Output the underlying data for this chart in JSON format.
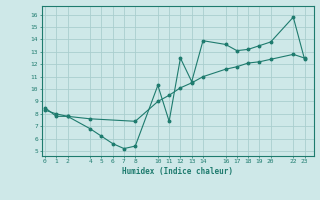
{
  "xlabel": "Humidex (Indice chaleur)",
  "line1_x": [
    0,
    1,
    2,
    4,
    5,
    6,
    7,
    8,
    10,
    11,
    12,
    13,
    14,
    16,
    17,
    18,
    19,
    20,
    22,
    23
  ],
  "line1_y": [
    8.5,
    7.8,
    7.8,
    6.8,
    6.2,
    5.6,
    5.2,
    5.4,
    10.3,
    7.4,
    12.5,
    10.6,
    13.9,
    13.6,
    13.1,
    13.2,
    13.5,
    13.8,
    15.8,
    12.4
  ],
  "line2_x": [
    0,
    1,
    2,
    4,
    8,
    10,
    11,
    12,
    13,
    14,
    16,
    17,
    18,
    19,
    20,
    22,
    23
  ],
  "line2_y": [
    8.3,
    8.0,
    7.8,
    7.6,
    7.4,
    9.0,
    9.5,
    10.1,
    10.5,
    11.0,
    11.6,
    11.8,
    12.1,
    12.2,
    12.4,
    12.8,
    12.5
  ],
  "line_color": "#1e7b6e",
  "bg_color": "#cee8e8",
  "grid_color": "#aacece",
  "xticks": [
    0,
    1,
    2,
    4,
    5,
    6,
    7,
    8,
    10,
    11,
    12,
    13,
    14,
    16,
    17,
    18,
    19,
    20,
    22,
    23
  ],
  "yticks": [
    5,
    6,
    7,
    8,
    9,
    10,
    11,
    12,
    13,
    14,
    15,
    16
  ],
  "xlim": [
    -0.3,
    23.8
  ],
  "ylim": [
    4.6,
    16.7
  ]
}
